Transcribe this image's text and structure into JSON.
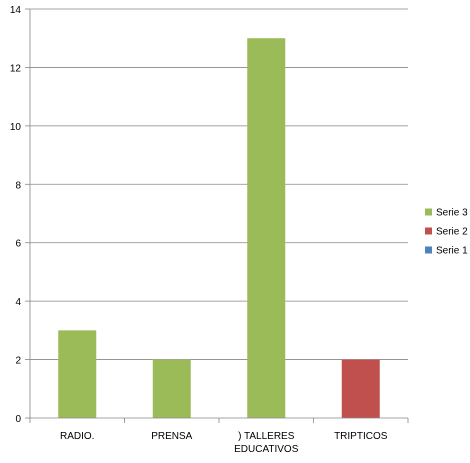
{
  "chart_data": {
    "type": "bar",
    "title": "",
    "xlabel": "",
    "ylabel": "",
    "categories": [
      [
        "RADIO."
      ],
      [
        "PRENSA"
      ],
      [
        ") TALLERES",
        "EDUCATIVOS"
      ],
      [
        "TRIPTICOS"
      ]
    ],
    "ylim": [
      0,
      14
    ],
    "yticks": [
      0,
      2,
      4,
      6,
      8,
      10,
      12,
      14
    ],
    "grid": true,
    "legend_position": "right",
    "series": [
      {
        "name": "Serie 1",
        "color": "#4F81BD",
        "values": [
          0,
          0,
          0,
          0
        ]
      },
      {
        "name": "Serie 2",
        "color": "#C0504D",
        "values": [
          0,
          0,
          0,
          2
        ]
      },
      {
        "name": "Serie 3",
        "color": "#9BBB59",
        "values": [
          3,
          2,
          13,
          0
        ]
      }
    ],
    "legend_order": [
      "Serie 3",
      "Serie 2",
      "Serie 1"
    ]
  }
}
